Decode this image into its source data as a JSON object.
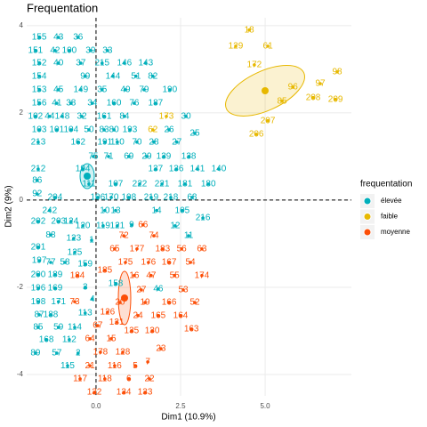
{
  "chart_data": {
    "type": "scatter",
    "title": "Frequentation",
    "x_label": "Dim1 (10.9%)",
    "y_label": "Dim2 (9%)",
    "legend_title": "frequentation",
    "legend_position": "right",
    "grid": true,
    "xlim": [
      -2.05,
      7.55
    ],
    "ylim": [
      -4.49,
      4.18
    ],
    "xticks": [
      {
        "value": 0,
        "label": "0.0"
      },
      {
        "value": 2.5,
        "label": "2.5"
      },
      {
        "value": 5,
        "label": "5.0"
      }
    ],
    "yticks": [
      -4,
      -2,
      0,
      2,
      4
    ],
    "series": [
      {
        "name": "élevée",
        "color": "#00AFBB",
        "labels": [
          "155",
          "43",
          "36",
          "151",
          "42",
          "100",
          "39",
          "33",
          "152",
          "40",
          "37",
          "215",
          "146",
          "143",
          "154",
          "99",
          "144",
          "51",
          "82",
          "153",
          "45",
          "149",
          "35",
          "49",
          "79",
          "190",
          "156",
          "41",
          "38",
          "34",
          "160",
          "76",
          "187",
          "102",
          "44",
          "148",
          "32",
          "161",
          "84",
          "30",
          "103",
          "101",
          "104",
          "50",
          "83",
          "80",
          "193",
          "26",
          "25",
          "213",
          "162",
          "191",
          "110",
          "70",
          "28",
          "27",
          "75",
          "71",
          "69",
          "29",
          "139",
          "138",
          "212",
          "194",
          "137",
          "136",
          "141",
          "140",
          "86",
          "111",
          "107",
          "222",
          "221",
          "181",
          "180",
          "92",
          "204",
          "106",
          "170",
          "108",
          "219",
          "218",
          "68",
          "242",
          "10",
          "13",
          "14",
          "105",
          "216",
          "202",
          "203",
          "124",
          "120",
          "119",
          "121",
          "9",
          "12",
          "88",
          "11",
          "123",
          "1",
          "201",
          "125",
          "197",
          "77",
          "58",
          "159",
          "200",
          "189",
          "158",
          "3",
          "46",
          "196",
          "169",
          "4",
          "198",
          "171",
          "87",
          "188",
          "113",
          "85",
          "59",
          "114",
          "168",
          "112",
          "89",
          "57",
          "2",
          "115"
        ],
        "x": [
          -1.68,
          -1.11,
          -0.53,
          -1.79,
          -1.21,
          -0.79,
          -0.16,
          0.34,
          -1.68,
          -1.11,
          -0.45,
          0.18,
          0.84,
          1.47,
          -1.68,
          -0.32,
          0.5,
          1.18,
          1.68,
          -1.68,
          -1.11,
          -0.45,
          0.18,
          0.87,
          1.42,
          2.18,
          -1.68,
          -1.16,
          -0.74,
          -0.11,
          0.53,
          1.13,
          1.76,
          -1.79,
          -1.37,
          -1.0,
          -0.42,
          0.24,
          0.84,
          2.66,
          -1.68,
          -1.16,
          -0.74,
          -0.21,
          0.24,
          0.53,
          1.0,
          2.16,
          2.92,
          -1.71,
          -0.53,
          0.26,
          0.63,
          1.21,
          1.71,
          2.39,
          -0.08,
          0.37,
          0.97,
          1.5,
          2.0,
          2.74,
          -1.71,
          -0.39,
          1.76,
          2.37,
          3.0,
          3.63,
          -1.74,
          -0.21,
          0.58,
          1.29,
          1.95,
          2.63,
          3.32,
          -1.74,
          -1.21,
          0.05,
          0.45,
          0.97,
          1.63,
          2.21,
          2.84,
          -1.37,
          0.26,
          0.58,
          1.79,
          2.55,
          3.16,
          -1.71,
          -1.11,
          -0.74,
          -0.39,
          0.21,
          0.63,
          1.05,
          2.34,
          -1.34,
          2.74,
          -0.66,
          -0.13,
          -1.71,
          -0.63,
          -1.68,
          -1.34,
          -0.92,
          -0.32,
          -1.71,
          -1.21,
          0.58,
          -0.32,
          1.84,
          -1.71,
          -1.21,
          -0.11,
          -1.71,
          -1.11,
          -1.68,
          -1.34,
          -0.32,
          -1.71,
          -1.11,
          -0.63,
          -1.47,
          -0.79,
          -1.79,
          -1.16,
          -0.53,
          -0.84
        ],
        "y": [
          3.73,
          3.73,
          3.73,
          3.43,
          3.43,
          3.43,
          3.43,
          3.43,
          3.14,
          3.14,
          3.14,
          3.14,
          3.14,
          3.14,
          2.84,
          2.84,
          2.84,
          2.84,
          2.84,
          2.53,
          2.53,
          2.53,
          2.53,
          2.53,
          2.53,
          2.53,
          2.22,
          2.22,
          2.22,
          2.22,
          2.22,
          2.22,
          2.22,
          1.92,
          1.92,
          1.92,
          1.92,
          1.92,
          1.92,
          1.92,
          1.61,
          1.61,
          1.61,
          1.61,
          1.61,
          1.61,
          1.61,
          1.61,
          1.53,
          1.33,
          1.33,
          1.33,
          1.33,
          1.33,
          1.33,
          1.33,
          1.0,
          1.0,
          1.0,
          1.0,
          1.0,
          1.0,
          0.71,
          0.71,
          0.71,
          0.71,
          0.71,
          0.71,
          0.45,
          0.37,
          0.37,
          0.37,
          0.37,
          0.37,
          0.37,
          0.14,
          0.06,
          0.06,
          0.06,
          0.06,
          0.06,
          0.06,
          0.06,
          -0.24,
          -0.24,
          -0.24,
          -0.24,
          -0.24,
          -0.41,
          -0.49,
          -0.49,
          -0.49,
          -0.59,
          -0.59,
          -0.59,
          -0.57,
          -0.59,
          -0.8,
          -0.82,
          -0.88,
          -0.92,
          -1.08,
          -1.2,
          -1.39,
          -1.43,
          -1.43,
          -1.47,
          -1.71,
          -1.71,
          -1.92,
          -2.0,
          -2.04,
          -2.02,
          -2.02,
          -2.27,
          -2.33,
          -2.33,
          -2.63,
          -2.63,
          -2.59,
          -2.92,
          -2.92,
          -2.92,
          -3.2,
          -3.2,
          -3.51,
          -3.51,
          -3.51,
          -3.8
        ]
      },
      {
        "name": "faible",
        "color": "#E7B800",
        "labels": [
          "18",
          "129",
          "61",
          "172",
          "98",
          "96",
          "97",
          "85",
          "208",
          "209",
          "207",
          "206",
          "173",
          "62"
        ],
        "x": [
          4.53,
          4.13,
          5.08,
          4.68,
          7.13,
          5.82,
          6.63,
          5.5,
          6.42,
          7.08,
          5.08,
          4.74,
          2.08,
          1.68
        ],
        "y": [
          3.9,
          3.53,
          3.53,
          3.1,
          2.94,
          2.59,
          2.67,
          2.27,
          2.35,
          2.31,
          1.82,
          1.51,
          1.92,
          1.61
        ]
      },
      {
        "name": "moyenne",
        "color": "#FC4E07",
        "labels": [
          "72",
          "74",
          "65",
          "177",
          "183",
          "56",
          "63",
          "175",
          "176",
          "167",
          "54",
          "185",
          "16",
          "47",
          "55",
          "174",
          "27",
          "53",
          "184",
          "73",
          "20",
          "19",
          "166",
          "52",
          "126",
          "24",
          "165",
          "164",
          "67",
          "131",
          "135",
          "130",
          "163",
          "64",
          "15",
          "23",
          "178",
          "128",
          "7",
          "21",
          "116",
          "5",
          "117",
          "118",
          "6",
          "22",
          "132",
          "134",
          "133",
          "66"
        ],
        "x": [
          0.82,
          1.71,
          0.55,
          1.21,
          1.97,
          2.53,
          3.13,
          0.87,
          1.55,
          2.16,
          2.79,
          0.26,
          1.13,
          1.63,
          2.32,
          3.13,
          1.34,
          2.58,
          -0.55,
          -0.63,
          0.71,
          1.45,
          2.16,
          2.92,
          0.34,
          1.24,
          1.84,
          2.5,
          0.05,
          0.61,
          1.05,
          1.66,
          2.82,
          -0.18,
          0.45,
          1.92,
          0.13,
          0.79,
          1.53,
          -0.18,
          0.55,
          1.16,
          -0.47,
          0.26,
          0.97,
          1.58,
          -0.05,
          0.82,
          1.45,
          1.39
        ],
        "y": [
          -0.82,
          -0.82,
          -1.12,
          -1.12,
          -1.12,
          -1.12,
          -1.12,
          -1.43,
          -1.43,
          -1.43,
          -1.43,
          -1.61,
          -1.73,
          -1.73,
          -1.73,
          -1.73,
          -2.06,
          -2.06,
          -1.73,
          -2.33,
          -2.35,
          -2.35,
          -2.35,
          -2.35,
          -2.57,
          -2.65,
          -2.65,
          -2.65,
          -2.88,
          -2.8,
          -3.0,
          -3.0,
          -2.96,
          -3.18,
          -3.18,
          -3.41,
          -3.49,
          -3.49,
          -3.71,
          -3.8,
          -3.8,
          -3.8,
          -4.1,
          -4.1,
          -4.1,
          -4.1,
          -4.41,
          -4.41,
          -4.41,
          -0.57
        ]
      }
    ]
  }
}
